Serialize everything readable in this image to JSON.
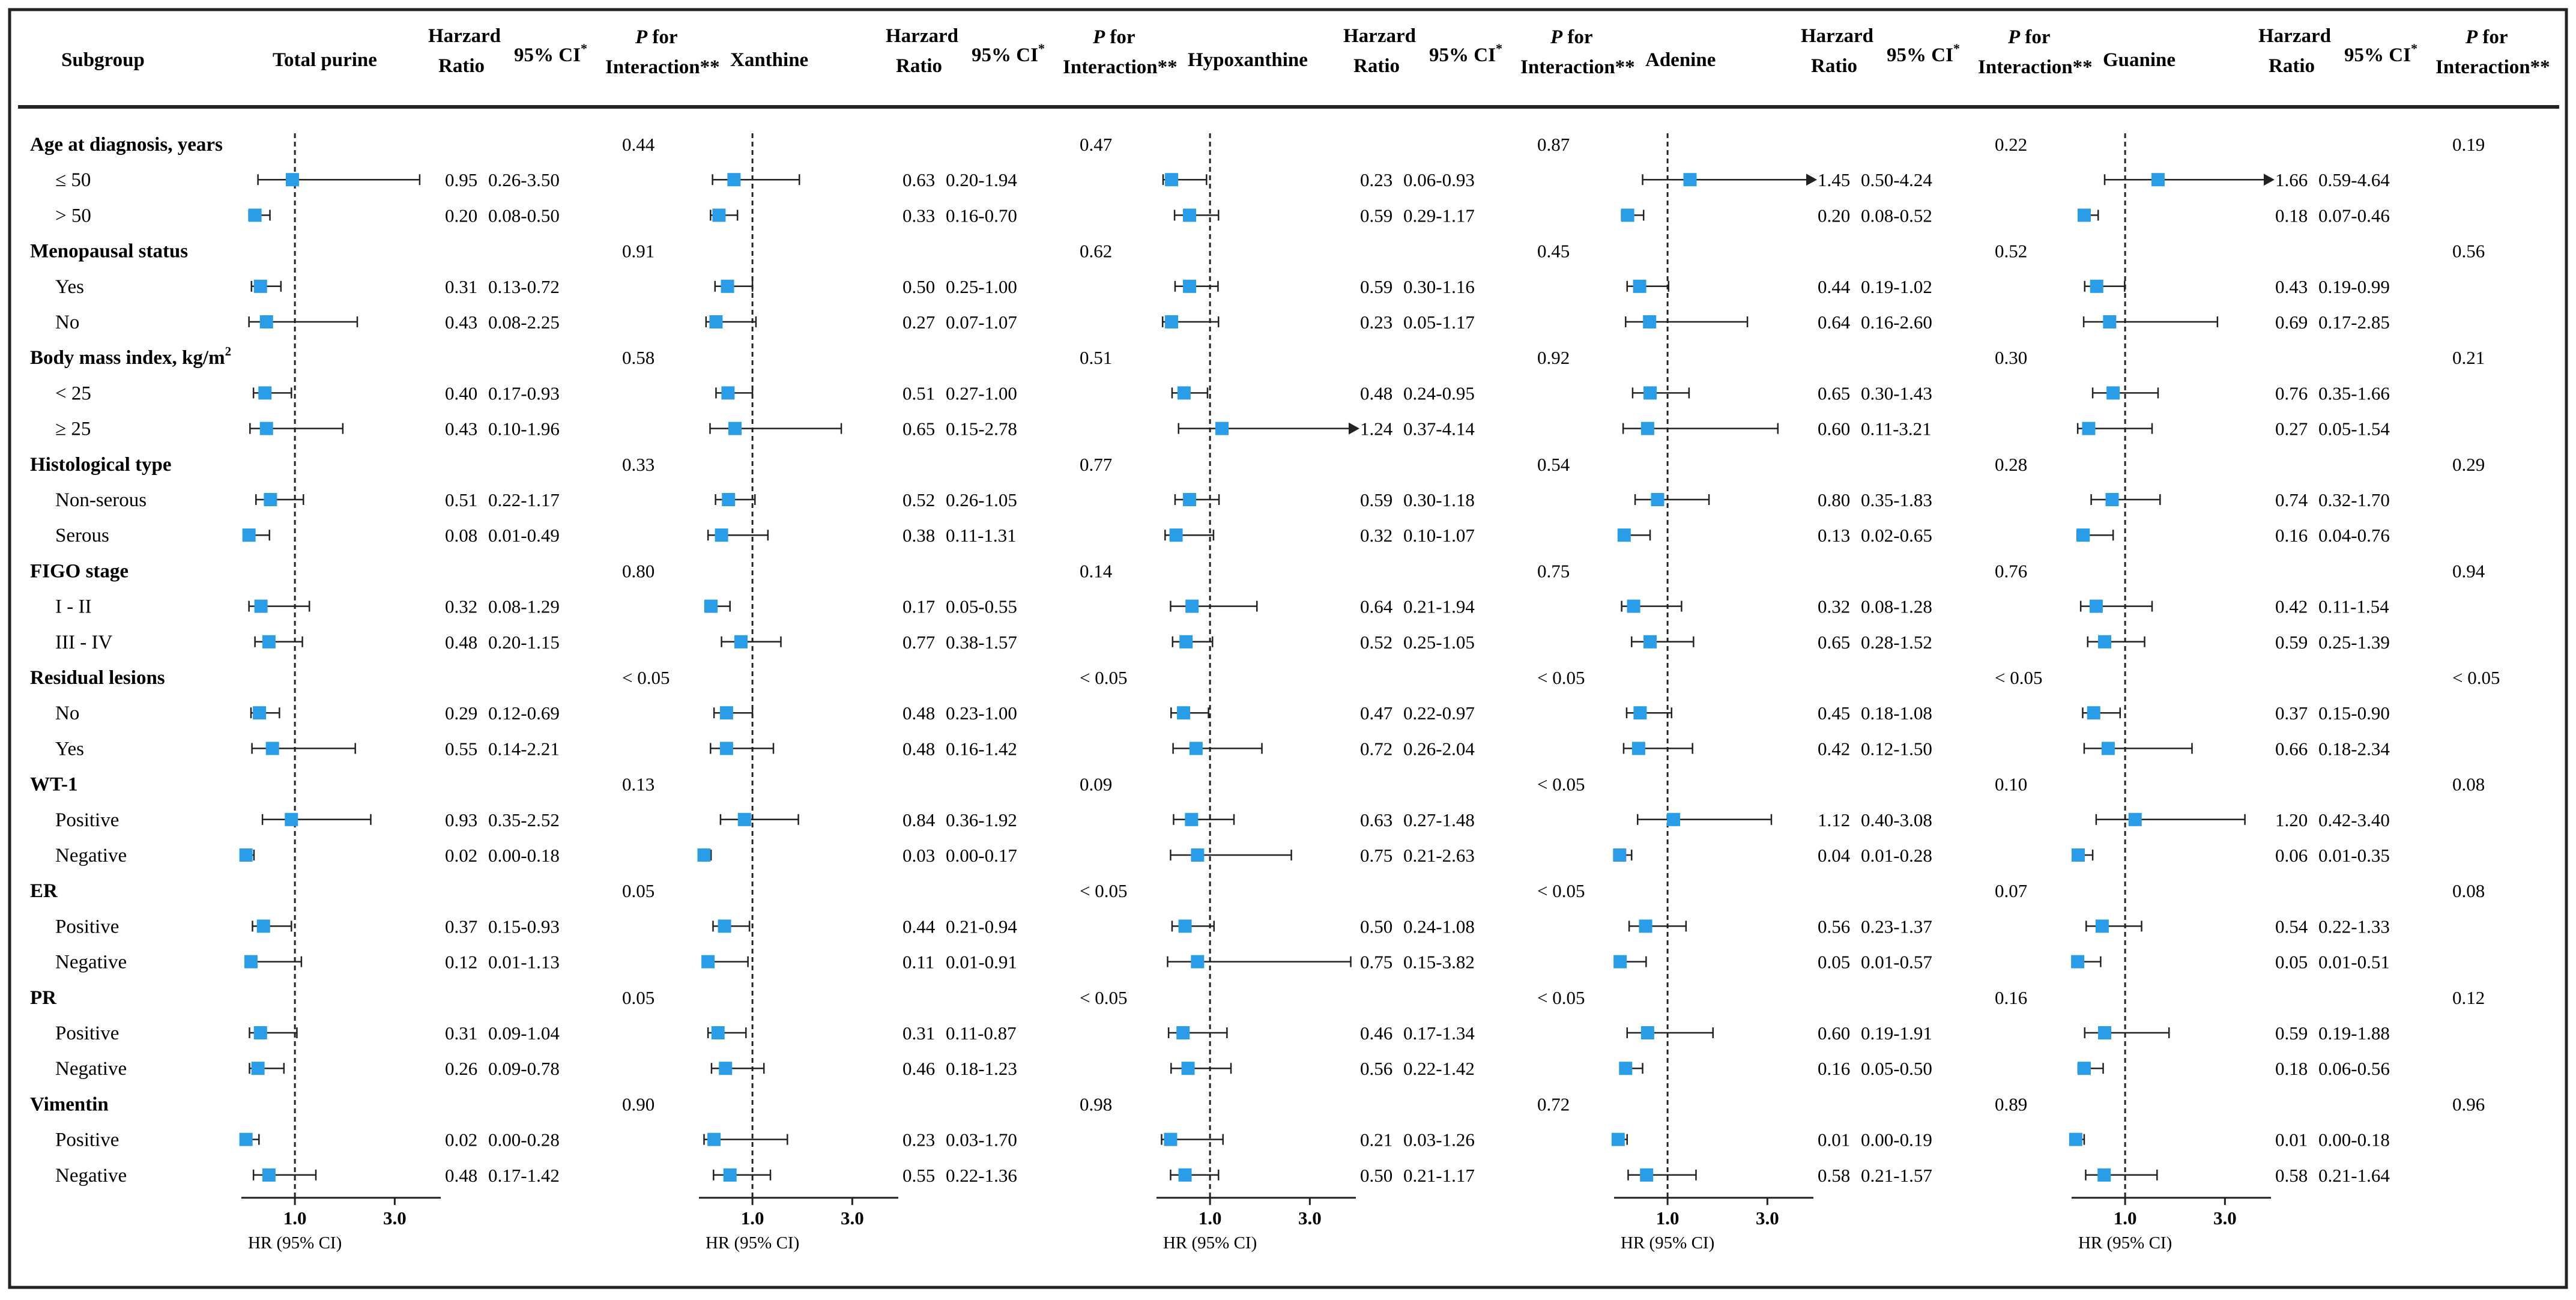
{
  "chart_data": {
    "type": "forest",
    "colors": {
      "marker": "#2a9de8",
      "line": "#222222",
      "border": "#222222"
    },
    "headers": {
      "subgroup": "Subgroup",
      "hr_line1": "Harzard",
      "hr_line2": "Ratio",
      "ci": "95% CI",
      "ci_mark": "*",
      "p_line1_italic": "P",
      "p_line1_rest": " for",
      "p_line2": "Interaction**"
    },
    "axis": {
      "ticks": [
        1.0,
        3.0
      ],
      "tick_labels": [
        "1.0",
        "3.0"
      ],
      "xlabel": "HR (95% CI)",
      "reference_line": 1.0
    },
    "panels": [
      {
        "name": "Total purine"
      },
      {
        "name": "Xanthine"
      },
      {
        "name": "Hypoxanthine"
      },
      {
        "name": "Adenine"
      },
      {
        "name": "Guanine"
      }
    ],
    "groups": [
      {
        "label": "Age at diagnosis, years",
        "p": [
          "0.44",
          "0.47",
          "0.87",
          "0.22",
          "0.19"
        ],
        "rows": [
          {
            "label": "≤ 50",
            "hr": [
              0.95,
              0.63,
              0.23,
              1.45,
              1.66
            ],
            "lo": [
              0.26,
              0.2,
              0.06,
              0.5,
              0.59
            ],
            "hi": [
              3.5,
              1.94,
              0.93,
              4.24,
              4.64
            ],
            "hr_text": [
              "0.95",
              "0.63",
              "0.23",
              "1.45",
              "1.66"
            ],
            "ci_text": [
              "0.26-3.50",
              "0.20-1.94",
              "0.06-0.93",
              "0.50-4.24",
              "0.59-4.64"
            ]
          },
          {
            "label": "> 50",
            "hr": [
              0.2,
              0.33,
              0.59,
              0.2,
              0.18
            ],
            "lo": [
              0.08,
              0.16,
              0.29,
              0.08,
              0.07
            ],
            "hi": [
              0.5,
              0.7,
              1.17,
              0.52,
              0.46
            ],
            "hr_text": [
              "0.20",
              "0.33",
              "0.59",
              "0.20",
              "0.18"
            ],
            "ci_text": [
              "0.08-0.50",
              "0.16-0.70",
              "0.29-1.17",
              "0.08-0.52",
              "0.07-0.46"
            ]
          }
        ]
      },
      {
        "label": "Menopausal status",
        "p": [
          "0.91",
          "0.62",
          "0.45",
          "0.52",
          "0.56"
        ],
        "rows": [
          {
            "label": "Yes",
            "hr": [
              0.31,
              0.5,
              0.59,
              0.44,
              0.43
            ],
            "lo": [
              0.13,
              0.25,
              0.3,
              0.19,
              0.19
            ],
            "hi": [
              0.72,
              1.0,
              1.16,
              1.02,
              0.99
            ],
            "hr_text": [
              "0.31",
              "0.50",
              "0.59",
              "0.44",
              "0.43"
            ],
            "ci_text": [
              "0.13-0.72",
              "0.25-1.00",
              "0.30-1.16",
              "0.19-1.02",
              "0.19-0.99"
            ]
          },
          {
            "label": "No",
            "hr": [
              0.43,
              0.27,
              0.23,
              0.64,
              0.69
            ],
            "lo": [
              0.08,
              0.07,
              0.05,
              0.16,
              0.17
            ],
            "hi": [
              2.25,
              1.07,
              1.17,
              2.6,
              2.85
            ],
            "hr_text": [
              "0.43",
              "0.27",
              "0.23",
              "0.64",
              "0.69"
            ],
            "ci_text": [
              "0.08-2.25",
              "0.07-1.07",
              "0.05-1.17",
              "0.16-2.60",
              "0.17-2.85"
            ]
          }
        ]
      },
      {
        "label": "Body mass index, kg/m",
        "label_sup": "2",
        "p": [
          "0.58",
          "0.51",
          "0.92",
          "0.30",
          "0.21"
        ],
        "rows": [
          {
            "label": "< 25",
            "hr": [
              0.4,
              0.51,
              0.48,
              0.65,
              0.76
            ],
            "lo": [
              0.17,
              0.27,
              0.24,
              0.3,
              0.35
            ],
            "hi": [
              0.93,
              1.0,
              0.95,
              1.43,
              1.66
            ],
            "hr_text": [
              "0.40",
              "0.51",
              "0.48",
              "0.65",
              "0.76"
            ],
            "ci_text": [
              "0.17-0.93",
              "0.27-1.00",
              "0.24-0.95",
              "0.30-1.43",
              "0.35-1.66"
            ]
          },
          {
            "label": "≥ 25",
            "hr": [
              0.43,
              0.65,
              1.24,
              0.6,
              0.27
            ],
            "lo": [
              0.1,
              0.15,
              0.37,
              0.11,
              0.05
            ],
            "hi": [
              1.96,
              2.78,
              4.14,
              3.21,
              1.54
            ],
            "hr_text": [
              "0.43",
              "0.65",
              "1.24",
              "0.60",
              "0.27"
            ],
            "ci_text": [
              "0.10-1.96",
              "0.15-2.78",
              "0.37-4.14",
              "0.11-3.21",
              "0.05-1.54"
            ]
          }
        ]
      },
      {
        "label": "Histological type",
        "p": [
          "0.33",
          "0.77",
          "0.54",
          "0.28",
          "0.29"
        ],
        "rows": [
          {
            "label": "Non-serous",
            "hr": [
              0.51,
              0.52,
              0.59,
              0.8,
              0.74
            ],
            "lo": [
              0.22,
              0.26,
              0.3,
              0.35,
              0.32
            ],
            "hi": [
              1.17,
              1.05,
              1.18,
              1.83,
              1.7
            ],
            "hr_text": [
              "0.51",
              "0.52",
              "0.59",
              "0.80",
              "0.74"
            ],
            "ci_text": [
              "0.22-1.17",
              "0.26-1.05",
              "0.30-1.18",
              "0.35-1.83",
              "0.32-1.70"
            ]
          },
          {
            "label": "Serous",
            "hr": [
              0.08,
              0.38,
              0.32,
              0.13,
              0.16
            ],
            "lo": [
              0.01,
              0.11,
              0.1,
              0.02,
              0.04
            ],
            "hi": [
              0.49,
              1.31,
              1.07,
              0.65,
              0.76
            ],
            "hr_text": [
              "0.08",
              "0.38",
              "0.32",
              "0.13",
              "0.16"
            ],
            "ci_text": [
              "0.01-0.49",
              "0.11-1.31",
              "0.10-1.07",
              "0.02-0.65",
              "0.04-0.76"
            ]
          }
        ]
      },
      {
        "label": "FIGO stage",
        "p": [
          "0.80",
          "0.14",
          "0.75",
          "0.76",
          "0.94"
        ],
        "rows": [
          {
            "label": "I - II",
            "hr": [
              0.32,
              0.17,
              0.64,
              0.32,
              0.42
            ],
            "lo": [
              0.08,
              0.05,
              0.21,
              0.08,
              0.11
            ],
            "hi": [
              1.29,
              0.55,
              1.94,
              1.28,
              1.54
            ],
            "hr_text": [
              "0.32",
              "0.17",
              "0.64",
              "0.32",
              "0.42"
            ],
            "ci_text": [
              "0.08-1.29",
              "0.05-0.55",
              "0.21-1.94",
              "0.08-1.28",
              "0.11-1.54"
            ]
          },
          {
            "label": "III - IV",
            "hr": [
              0.48,
              0.77,
              0.52,
              0.65,
              0.59
            ],
            "lo": [
              0.2,
              0.38,
              0.25,
              0.28,
              0.25
            ],
            "hi": [
              1.15,
              1.57,
              1.05,
              1.52,
              1.39
            ],
            "hr_text": [
              "0.48",
              "0.77",
              "0.52",
              "0.65",
              "0.59"
            ],
            "ci_text": [
              "0.20-1.15",
              "0.38-1.57",
              "0.25-1.05",
              "0.28-1.52",
              "0.25-1.39"
            ]
          }
        ]
      },
      {
        "label": "Residual lesions",
        "p": [
          "< 0.05",
          "< 0.05",
          "< 0.05",
          "< 0.05",
          "< 0.05"
        ],
        "rows": [
          {
            "label": "No",
            "hr": [
              0.29,
              0.48,
              0.47,
              0.45,
              0.37
            ],
            "lo": [
              0.12,
              0.23,
              0.22,
              0.18,
              0.15
            ],
            "hi": [
              0.69,
              1.0,
              0.97,
              1.08,
              0.9
            ],
            "hr_text": [
              "0.29",
              "0.48",
              "0.47",
              "0.45",
              "0.37"
            ],
            "ci_text": [
              "0.12-0.69",
              "0.23-1.00",
              "0.22-0.97",
              "0.18-1.08",
              "0.15-0.90"
            ]
          },
          {
            "label": "Yes",
            "hr": [
              0.55,
              0.48,
              0.72,
              0.42,
              0.66
            ],
            "lo": [
              0.14,
              0.16,
              0.26,
              0.12,
              0.18
            ],
            "hi": [
              2.21,
              1.42,
              2.04,
              1.5,
              2.34
            ],
            "hr_text": [
              "0.55",
              "0.48",
              "0.72",
              "0.42",
              "0.66"
            ],
            "ci_text": [
              "0.14-2.21",
              "0.16-1.42",
              "0.26-2.04",
              "0.12-1.50",
              "0.18-2.34"
            ]
          }
        ]
      },
      {
        "label": "WT-1",
        "p": [
          "0.13",
          "0.09",
          "< 0.05",
          "0.10",
          "0.08"
        ],
        "rows": [
          {
            "label": "Positive",
            "hr": [
              0.93,
              0.84,
              0.63,
              1.12,
              1.2
            ],
            "lo": [
              0.35,
              0.36,
              0.27,
              0.4,
              0.42
            ],
            "hi": [
              2.52,
              1.92,
              1.48,
              3.08,
              3.4
            ],
            "hr_text": [
              "0.93",
              "0.84",
              "0.63",
              "1.12",
              "1.20"
            ],
            "ci_text": [
              "0.35-2.52",
              "0.36-1.92",
              "0.27-1.48",
              "0.40-3.08",
              "0.42-3.40"
            ]
          },
          {
            "label": "Negative",
            "hr": [
              0.02,
              0.03,
              0.75,
              0.04,
              0.06
            ],
            "lo": [
              0.0,
              0.0,
              0.21,
              0.01,
              0.01
            ],
            "hi": [
              0.18,
              0.17,
              2.63,
              0.28,
              0.35
            ],
            "hr_text": [
              "0.02",
              "0.03",
              "0.75",
              "0.04",
              "0.06"
            ],
            "ci_text": [
              "0.00-0.18",
              "0.00-0.17",
              "0.21-2.63",
              "0.01-0.28",
              "0.01-0.35"
            ]
          }
        ]
      },
      {
        "label": "ER",
        "p": [
          "0.05",
          "< 0.05",
          "< 0.05",
          "0.07",
          "0.08"
        ],
        "rows": [
          {
            "label": "Positive",
            "hr": [
              0.37,
              0.44,
              0.5,
              0.56,
              0.54
            ],
            "lo": [
              0.15,
              0.21,
              0.24,
              0.23,
              0.22
            ],
            "hi": [
              0.93,
              0.94,
              1.08,
              1.37,
              1.33
            ],
            "hr_text": [
              "0.37",
              "0.44",
              "0.50",
              "0.56",
              "0.54"
            ],
            "ci_text": [
              "0.15-0.93",
              "0.21-0.94",
              "0.24-1.08",
              "0.23-1.37",
              "0.22-1.33"
            ]
          },
          {
            "label": "Negative",
            "hr": [
              0.12,
              0.11,
              0.75,
              0.05,
              0.05
            ],
            "lo": [
              0.01,
              0.01,
              0.15,
              0.01,
              0.01
            ],
            "hi": [
              1.13,
              0.91,
              3.82,
              0.57,
              0.51
            ],
            "hr_text": [
              "0.12",
              "0.11",
              "0.75",
              "0.05",
              "0.05"
            ],
            "ci_text": [
              "0.01-1.13",
              "0.01-0.91",
              "0.15-3.82",
              "0.01-0.57",
              "0.01-0.51"
            ]
          }
        ]
      },
      {
        "label": "PR",
        "p": [
          "0.05",
          "< 0.05",
          "< 0.05",
          "0.16",
          "0.12"
        ],
        "rows": [
          {
            "label": "Positive",
            "hr": [
              0.31,
              0.31,
              0.46,
              0.6,
              0.59
            ],
            "lo": [
              0.09,
              0.11,
              0.17,
              0.19,
              0.19
            ],
            "hi": [
              1.04,
              0.87,
              1.34,
              1.91,
              1.88
            ],
            "hr_text": [
              "0.31",
              "0.31",
              "0.46",
              "0.60",
              "0.59"
            ],
            "ci_text": [
              "0.09-1.04",
              "0.11-0.87",
              "0.17-1.34",
              "0.19-1.91",
              "0.19-1.88"
            ]
          },
          {
            "label": "Negative",
            "hr": [
              0.26,
              0.46,
              0.56,
              0.16,
              0.18
            ],
            "lo": [
              0.09,
              0.18,
              0.22,
              0.05,
              0.06
            ],
            "hi": [
              0.78,
              1.23,
              1.42,
              0.5,
              0.56
            ],
            "hr_text": [
              "0.26",
              "0.46",
              "0.56",
              "0.16",
              "0.18"
            ],
            "ci_text": [
              "0.09-0.78",
              "0.18-1.23",
              "0.22-1.42",
              "0.05-0.50",
              "0.06-0.56"
            ]
          }
        ]
      },
      {
        "label": "Vimentin",
        "p": [
          "0.90",
          "0.98",
          "0.72",
          "0.89",
          "0.96"
        ],
        "rows": [
          {
            "label": "Positive",
            "hr": [
              0.02,
              0.23,
              0.21,
              0.01,
              0.01
            ],
            "lo": [
              0.0,
              0.03,
              0.03,
              0.0,
              0.0
            ],
            "hi": [
              0.28,
              1.7,
              1.26,
              0.19,
              0.18
            ],
            "hr_text": [
              "0.02",
              "0.23",
              "0.21",
              "0.01",
              "0.01"
            ],
            "ci_text": [
              "0.00-0.28",
              "0.03-1.70",
              "0.03-1.26",
              "0.00-0.19",
              "0.00-0.18"
            ]
          },
          {
            "label": "Negative",
            "hr": [
              0.48,
              0.55,
              0.5,
              0.58,
              0.58
            ],
            "lo": [
              0.17,
              0.22,
              0.21,
              0.21,
              0.21
            ],
            "hi": [
              1.42,
              1.36,
              1.17,
              1.57,
              1.64
            ],
            "hr_text": [
              "0.48",
              "0.55",
              "0.50",
              "0.58",
              "0.58"
            ],
            "ci_text": [
              "0.17-1.42",
              "0.22-1.36",
              "0.21-1.17",
              "0.21-1.57",
              "0.21-1.64"
            ]
          }
        ]
      }
    ]
  }
}
